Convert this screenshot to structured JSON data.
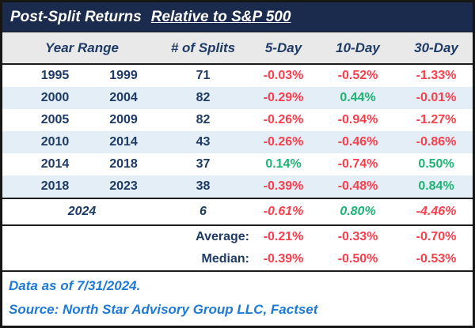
{
  "title": {
    "prefix": "Post-Split Returns",
    "underlined": "Relative to S&P 500"
  },
  "header": {
    "year_range": "Year Range",
    "splits": "# of Splits",
    "day5": "5-Day",
    "day10": "10-Day",
    "day30": "30-Day"
  },
  "rows": [
    {
      "start": "1995",
      "end": "1999",
      "splits": "71",
      "d5": "-0.03%",
      "d10": "-0.52%",
      "d30": "-1.33%"
    },
    {
      "start": "2000",
      "end": "2004",
      "splits": "82",
      "d5": "-0.29%",
      "d10": "0.44%",
      "d30": "-0.01%"
    },
    {
      "start": "2005",
      "end": "2009",
      "splits": "82",
      "d5": "-0.26%",
      "d10": "-0.94%",
      "d30": "-1.27%"
    },
    {
      "start": "2010",
      "end": "2014",
      "splits": "43",
      "d5": "-0.26%",
      "d10": "-0.46%",
      "d30": "-0.86%"
    },
    {
      "start": "2014",
      "end": "2018",
      "splits": "37",
      "d5": "0.14%",
      "d10": "-0.74%",
      "d30": "0.50%"
    },
    {
      "start": "2018",
      "end": "2023",
      "splits": "38",
      "d5": "-0.39%",
      "d10": "-0.48%",
      "d30": "0.84%"
    }
  ],
  "row_2024": {
    "label": "2024",
    "splits": "6",
    "d5": "-0.61%",
    "d10": "0.80%",
    "d30": "-4.46%"
  },
  "summary": [
    {
      "label": "Average:",
      "d5": "-0.21%",
      "d10": "-0.33%",
      "d30": "-0.70%"
    },
    {
      "label": "Median:",
      "d5": "-0.39%",
      "d10": "-0.50%",
      "d30": "-0.53%"
    }
  ],
  "footer": {
    "line1": "Data as of 7/31/2024.",
    "line2": "Source: North Star Advisory Group LLC, Factset"
  },
  "colors": {
    "title_bar_navy": "#1b2b4d",
    "text_navy": "#1e3a66",
    "negative_red": "#fa3f4d",
    "positive_green": "#1db374",
    "stripe_blue": "#e4eef7",
    "header_gray": "#e9e9e9",
    "source_blue": "#1e7ad5"
  },
  "chart_data": {
    "type": "table",
    "title": "Post-Split Returns Relative to S&P 500",
    "columns": [
      "Year Range (start)",
      "Year Range (end)",
      "# of Splits",
      "5-Day",
      "10-Day",
      "30-Day"
    ],
    "units": "percent relative to S&P 500",
    "rows": [
      [
        1995,
        1999,
        71,
        -0.03,
        -0.52,
        -1.33
      ],
      [
        2000,
        2004,
        82,
        -0.29,
        0.44,
        -0.01
      ],
      [
        2005,
        2009,
        82,
        -0.26,
        -0.94,
        -1.27
      ],
      [
        2010,
        2014,
        43,
        -0.26,
        -0.46,
        -0.86
      ],
      [
        2014,
        2018,
        37,
        0.14,
        -0.74,
        0.5
      ],
      [
        2018,
        2023,
        38,
        -0.39,
        -0.48,
        0.84
      ],
      [
        2024,
        null,
        6,
        -0.61,
        0.8,
        -4.46
      ]
    ],
    "average": [
      -0.21,
      -0.33,
      -0.7
    ],
    "median": [
      -0.39,
      -0.5,
      -0.53
    ]
  }
}
